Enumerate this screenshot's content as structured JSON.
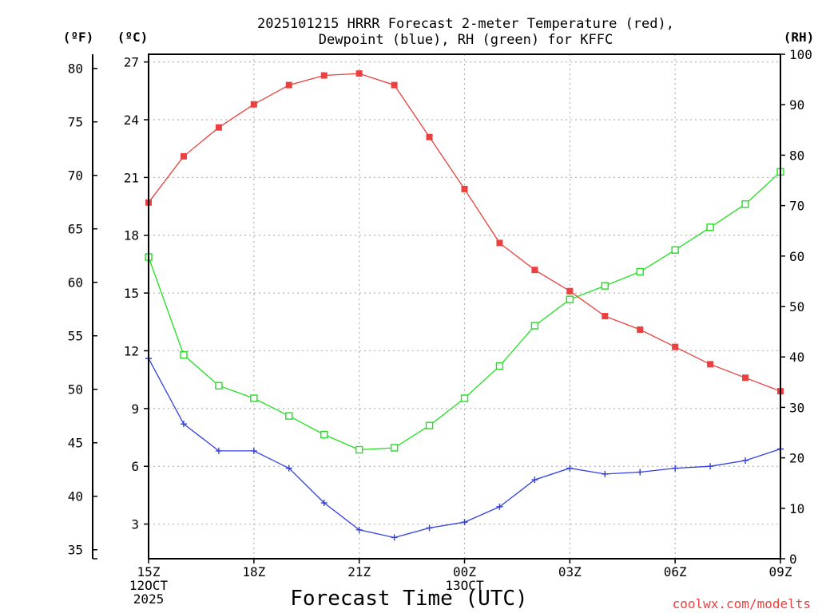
{
  "chart_data": {
    "type": "line",
    "title": [
      "2025101215 HRRR Forecast 2-meter Temperature (red),",
      "Dewpoint (blue), RH (green) for KFFC"
    ],
    "xlabel": "Forecast Time (UTC)",
    "credit": "coolwx.com/modelts",
    "units": {
      "fahrenheit": "(ºF)",
      "celsius": "(ºC)",
      "rh": "(RH)"
    },
    "x_tick_labels": [
      {
        "hour": 0,
        "lines": [
          "15Z",
          "12OCT",
          "2025"
        ]
      },
      {
        "hour": 3,
        "lines": [
          "18Z"
        ]
      },
      {
        "hour": 6,
        "lines": [
          "21Z"
        ]
      },
      {
        "hour": 9,
        "lines": [
          "00Z",
          "13OCT"
        ]
      },
      {
        "hour": 12,
        "lines": [
          "03Z"
        ]
      },
      {
        "hour": 15,
        "lines": [
          "06Z"
        ]
      },
      {
        "hour": 18,
        "lines": [
          "09Z"
        ]
      }
    ],
    "xlim": [
      0,
      18
    ],
    "celsius_axis": {
      "ylim": [
        1.2,
        27.4
      ],
      "ticks": [
        3,
        6,
        9,
        12,
        15,
        18,
        21,
        24,
        27
      ]
    },
    "fahrenheit_axis": {
      "ticks": [
        35,
        40,
        45,
        50,
        55,
        60,
        65,
        70,
        75,
        80
      ]
    },
    "rh_axis": {
      "ylim": [
        0,
        100
      ],
      "ticks": [
        0,
        10,
        20,
        30,
        40,
        50,
        60,
        70,
        80,
        90,
        100
      ]
    },
    "x": [
      0,
      1,
      2,
      3,
      4,
      5,
      6,
      7,
      8,
      9,
      10,
      11,
      12,
      13,
      14,
      15,
      16,
      17,
      18
    ],
    "series": [
      {
        "name": "Temperature",
        "axis": "celsius",
        "color": "#e8413f",
        "marker": "filled-square",
        "values": [
          19.7,
          22.1,
          23.6,
          24.8,
          25.8,
          26.3,
          26.4,
          25.8,
          23.1,
          20.4,
          17.6,
          16.2,
          15.1,
          13.8,
          13.1,
          12.2,
          11.3,
          10.6,
          9.9
        ]
      },
      {
        "name": "Dewpoint",
        "axis": "celsius",
        "color": "#3040e0",
        "marker": "plus",
        "values": [
          11.6,
          8.2,
          6.8,
          6.8,
          5.9,
          4.1,
          2.7,
          2.3,
          2.8,
          3.1,
          3.9,
          5.3,
          5.9,
          5.6,
          5.7,
          5.9,
          6.0,
          6.3,
          6.9
        ]
      },
      {
        "name": "RH",
        "axis": "rh",
        "color": "#20e020",
        "marker": "open-square",
        "values": [
          59.8,
          40.4,
          34.3,
          31.8,
          28.3,
          24.6,
          21.6,
          22.0,
          26.4,
          31.8,
          38.2,
          46.2,
          51.4,
          54.1,
          56.9,
          61.2,
          65.7,
          70.3,
          76.7
        ]
      }
    ]
  }
}
